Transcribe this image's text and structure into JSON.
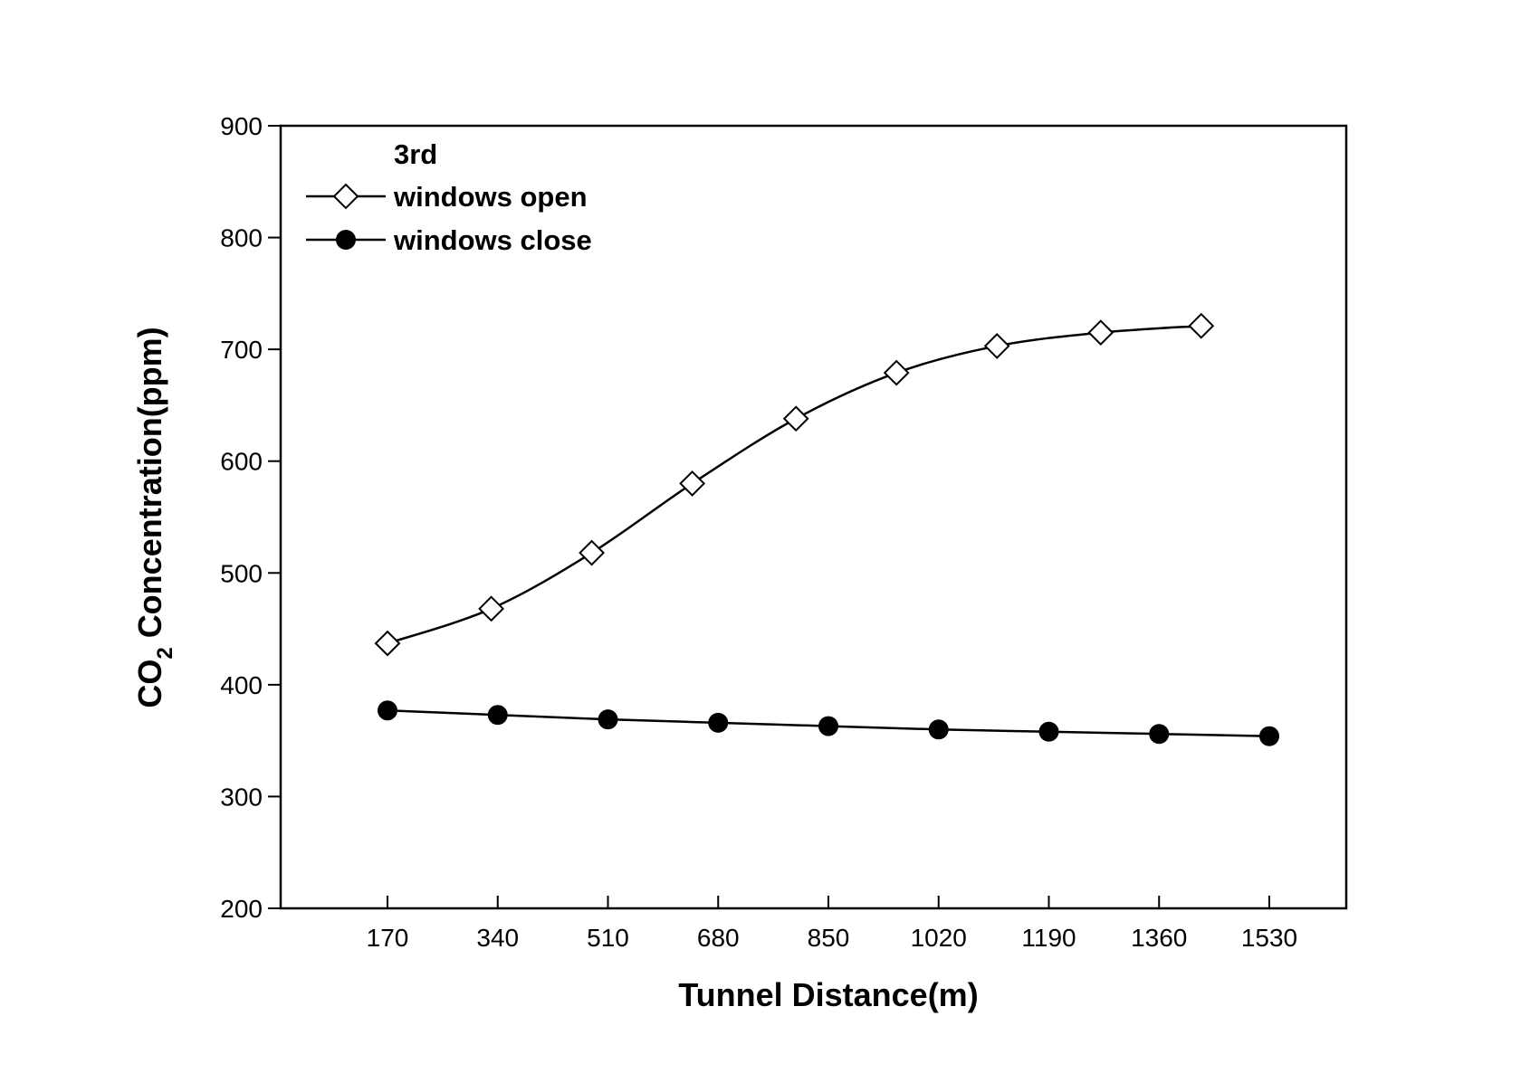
{
  "chart_data": {
    "type": "line",
    "title": "",
    "xlabel": "Tunnel Distance(m)",
    "ylabel_main": "CO",
    "ylabel_sub": "2",
    "ylabel_rest": " Concentration(ppm)",
    "ylim": [
      200,
      900
    ],
    "yticks": [
      200,
      300,
      400,
      500,
      600,
      700,
      800,
      900
    ],
    "xticks": [
      170,
      340,
      510,
      680,
      850,
      1020,
      1190,
      1360,
      1530
    ],
    "legend_title": "3rd",
    "legend_position": "top-left",
    "grid": false,
    "series": [
      {
        "name": "windows open",
        "marker": "open-diamond",
        "color": "#000000",
        "x": [
          170,
          330,
          485,
          640,
          800,
          955,
          1110,
          1270,
          1425
        ],
        "values": [
          437,
          468,
          518,
          580,
          638,
          679,
          703,
          715,
          721
        ]
      },
      {
        "name": "windows close",
        "marker": "filled-circle",
        "color": "#000000",
        "x": [
          170,
          340,
          510,
          680,
          850,
          1020,
          1190,
          1360,
          1530
        ],
        "values": [
          377,
          373,
          369,
          366,
          363,
          360,
          358,
          356,
          354
        ]
      }
    ]
  }
}
